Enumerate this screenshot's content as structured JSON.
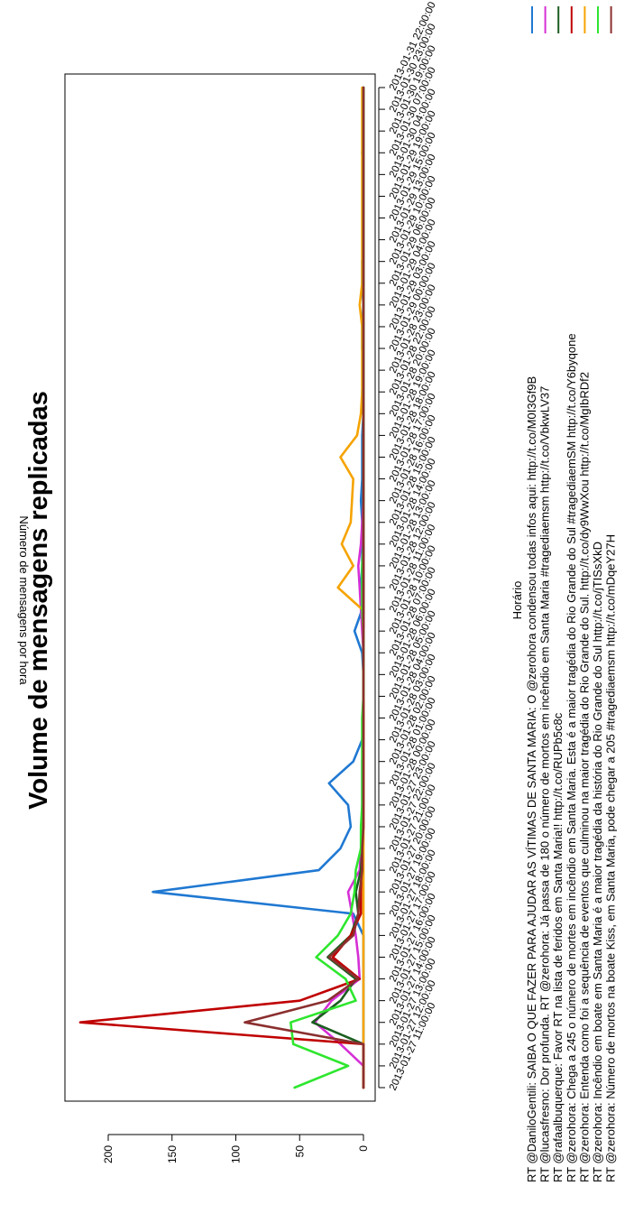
{
  "chart_data": {
    "type": "line",
    "title": "Volume de mensagens replicadas",
    "xlabel": "Horário",
    "ylabel": "Número de mensagens por hora",
    "ylim": [
      0,
      230
    ],
    "yticks": [
      "0",
      "50",
      "100",
      "150",
      "200"
    ],
    "grid": false,
    "legend_position": "right",
    "categories": [
      "2013-01-27 11:00:00",
      "2013-01-27 12:00:00",
      "2013-01-27 13:00:00",
      "2013-01-27 14:00:00",
      "2013-01-27 15:00:00",
      "2013-01-27 16:00:00",
      "2013-01-27 17:00:00",
      "2013-01-27 18:00:00",
      "2013-01-27 19:00:00",
      "2013-01-27 20:00:00",
      "2013-01-27 21:00:00",
      "2013-01-27 22:00:00",
      "2013-01-27 23:00:00",
      "2013-01-28 00:00:00",
      "2013-01-28 01:00:00",
      "2013-01-28 02:00:00",
      "2013-01-28 03:00:00",
      "2013-01-28 04:00:00",
      "2013-01-28 05:00:00",
      "2013-01-28 06:00:00",
      "2013-01-28 07:00:00",
      "2013-01-28 10:00:00",
      "2013-01-28 11:00:00",
      "2013-01-28 12:00:00",
      "2013-01-28 13:00:00",
      "2013-01-28 14:00:00",
      "2013-01-28 15:00:00",
      "2013-01-28 16:00:00",
      "2013-01-28 17:00:00",
      "2013-01-28 18:00:00",
      "2013-01-28 19:00:00",
      "2013-01-28 20:00:00",
      "2013-01-28 22:00:00",
      "2013-01-28 23:00:00",
      "2013-01-29 00:00:00",
      "2013-01-29 03:00:00",
      "2013-01-29 04:00:00",
      "2013-01-29 06:00:00",
      "2013-01-29 10:00:00",
      "2013-01-29 13:00:00",
      "2013-01-29 15:00:00",
      "2013-01-29 19:00:00",
      "2013-01-30 04:00:00",
      "2013-01-30 07:00:00",
      "2013-01-30 19:00:00",
      "2013-01-30 23:00:00",
      "2013-01-31 22:00:00"
    ],
    "series": [
      {
        "name": "RT @DaniloGentili: SAIBA O QUE FAZER PARA AJUDAR AS VÍTIMAS DE SANTA MARIA: O @zerohora condensou todas infos aqui: http://t.co/M0I3Gf9B",
        "color": "#1f78d2",
        "values": [
          0,
          0,
          0,
          0,
          0,
          0,
          0,
          0,
          8,
          165,
          35,
          18,
          10,
          12,
          27,
          8,
          1,
          0,
          0,
          0,
          1,
          7,
          1,
          2,
          1,
          1,
          1,
          2,
          1,
          1,
          1,
          0,
          1,
          0,
          1,
          1,
          0,
          1,
          1,
          0,
          0,
          0,
          0,
          1,
          0,
          0,
          0
        ]
      },
      {
        "name": "RT @lucasfresno: Dor profunda. RT @zerohora: Já passa de 180 o número de mortos em incêndio em Santa Maria #tragediaemsm http://t.co/VbkwLV37",
        "color": "#d62fd6",
        "values": [
          0,
          0,
          18,
          38,
          25,
          3,
          4,
          6,
          9,
          12,
          3,
          2,
          1,
          1,
          1,
          1,
          0,
          0,
          0,
          0,
          0,
          1,
          2,
          3,
          4,
          2,
          1,
          0,
          0,
          0,
          0,
          0,
          0,
          0,
          0,
          0,
          0,
          0,
          0,
          0,
          0,
          0,
          0,
          0,
          0,
          0,
          0
        ]
      },
      {
        "name": "RT @rafaalbuquerque: Favor RT na lista de feridos em Santa Maria!! http://t.co/RUPb5c8c",
        "color": "#1b5e20",
        "values": [
          0,
          0,
          0,
          40,
          18,
          6,
          28,
          10,
          4,
          6,
          2,
          1,
          1,
          0,
          0,
          0,
          0,
          0,
          0,
          0,
          0,
          0,
          0,
          0,
          0,
          0,
          0,
          0,
          0,
          0,
          0,
          0,
          0,
          0,
          0,
          0,
          0,
          0,
          0,
          0,
          0,
          0,
          0,
          0,
          0,
          0,
          0
        ]
      },
      {
        "name": "RT @zerohora: Chega a 245 o número de mortes em incêndio em Santa Maria. Esta é a maior tragédia do Rio Grande do Sul #tragediaemSM http://t.co/Y6byqone",
        "color": "#c00000",
        "values": [
          0,
          0,
          0,
          222,
          50,
          3,
          24,
          10,
          2,
          2,
          1,
          1,
          0,
          0,
          0,
          0,
          0,
          0,
          0,
          0,
          0,
          0,
          0,
          0,
          0,
          0,
          0,
          0,
          0,
          0,
          0,
          0,
          0,
          0,
          0,
          0,
          0,
          0,
          0,
          0,
          0,
          0,
          0,
          0,
          0,
          0,
          0
        ]
      },
      {
        "name": "RT @zerohora: Entenda como foi a sequência de eventos que culminou na maior tragédia do Rio Grande do Sul. http://t.co/dy9WwXou http://t.co/MgIbRDf2",
        "color": "#f5a300",
        "values": [
          0,
          0,
          0,
          0,
          0,
          0,
          0,
          0,
          0,
          0,
          0,
          0,
          0,
          0,
          0,
          0,
          0,
          0,
          0,
          0,
          0,
          0,
          1,
          20,
          8,
          17,
          10,
          9,
          8,
          18,
          5,
          2,
          1,
          1,
          1,
          1,
          3,
          1,
          1,
          1,
          1,
          1,
          1,
          1,
          1,
          1,
          1
        ]
      },
      {
        "name": "RT @zerohora: Incêndio em boate em Santa Maria é a maior tragédia da história do Rio Grande do Sul http://t.co/jTISsXkD",
        "color": "#2ee62e",
        "values": [
          54,
          12,
          55,
          57,
          6,
          14,
          37,
          20,
          10,
          7,
          6,
          2,
          2,
          1,
          1,
          1,
          1,
          1,
          0,
          0,
          0,
          0,
          1,
          1,
          1,
          0,
          0,
          0,
          0,
          0,
          0,
          0,
          0,
          0,
          0,
          0,
          0,
          0,
          0,
          0,
          0,
          0,
          0,
          0,
          0,
          0,
          0
        ]
      },
      {
        "name": "RT @zerohora: Número de mortos na boate Kiss, em Santa Maria, pode chegar a 205 #tragediaemsm http://t.co/mDqeY27H",
        "color": "#8b2f2f",
        "values": [
          0,
          0,
          0,
          93,
          28,
          4,
          27,
          8,
          4,
          3,
          1,
          1,
          0,
          0,
          0,
          0,
          0,
          0,
          0,
          0,
          0,
          0,
          0,
          0,
          0,
          0,
          0,
          0,
          0,
          0,
          0,
          0,
          0,
          0,
          0,
          0,
          0,
          0,
          0,
          0,
          0,
          0,
          0,
          0,
          0,
          0,
          0
        ]
      }
    ]
  }
}
